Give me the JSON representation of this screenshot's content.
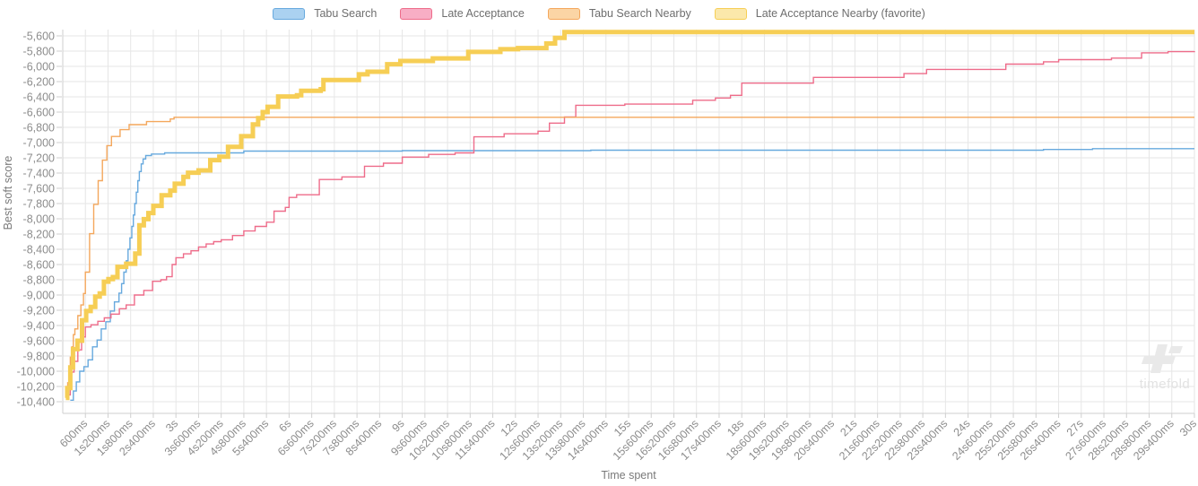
{
  "watermark": {
    "text": "timefold"
  },
  "legend": [
    {
      "label": "Tabu Search",
      "fill": "#abd2f1",
      "border": "#67a9de"
    },
    {
      "label": "Late Acceptance",
      "fill": "#f8aec5",
      "border": "#ee6c8a"
    },
    {
      "label": "Tabu Search Nearby",
      "fill": "#fbd5a5",
      "border": "#f4a75c"
    },
    {
      "label": "Late Acceptance Nearby (favorite)",
      "fill": "#fbe8ab",
      "border": "#f6ce55"
    }
  ],
  "chart_data": {
    "type": "line",
    "subtype": "step-after",
    "title": "",
    "xlabel": "Time spent",
    "ylabel": "Best soft score",
    "x_unit": "seconds",
    "xlim": [
      0,
      30
    ],
    "ylim": [
      -10400,
      -5600
    ],
    "grid": true,
    "legend_position": "top-center",
    "x_tick_start_s": 0.6,
    "x_tick_step_s": 0.6,
    "x_ticks": [
      "600ms",
      "1s200ms",
      "1s800ms",
      "2s400ms",
      "3s",
      "3s600ms",
      "4s200ms",
      "4s800ms",
      "5s400ms",
      "6s",
      "6s600ms",
      "7s200ms",
      "7s800ms",
      "8s400ms",
      "9s",
      "9s600ms",
      "10s200ms",
      "10s800ms",
      "11s400ms",
      "12s",
      "12s600ms",
      "13s200ms",
      "13s800ms",
      "14s400ms",
      "15s",
      "15s600ms",
      "16s200ms",
      "16s800ms",
      "17s400ms",
      "18s",
      "18s600ms",
      "19s200ms",
      "19s800ms",
      "20s400ms",
      "21s",
      "21s600ms",
      "22s200ms",
      "22s800ms",
      "23s400ms",
      "24s",
      "24s600ms",
      "25s200ms",
      "25s800ms",
      "26s400ms",
      "27s",
      "27s600ms",
      "28s200ms",
      "28s800ms",
      "29s400ms",
      "30s"
    ],
    "y_ticks": [
      -5600,
      -5800,
      -6000,
      -6200,
      -6400,
      -6600,
      -6800,
      -7000,
      -7200,
      -7400,
      -7600,
      -7800,
      -8000,
      -8200,
      -8400,
      -8600,
      -8800,
      -9000,
      -9200,
      -9400,
      -9600,
      -9800,
      -10000,
      -10200,
      -10400
    ],
    "series": [
      {
        "name": "Tabu Search",
        "color": "#67a9de",
        "favorite": false,
        "points": [
          [
            0.2,
            -10380
          ],
          [
            0.28,
            -10260
          ],
          [
            0.36,
            -10140
          ],
          [
            0.45,
            -10000
          ],
          [
            0.56,
            -9940
          ],
          [
            0.67,
            -9850
          ],
          [
            0.79,
            -9680
          ],
          [
            0.91,
            -9590
          ],
          [
            1.02,
            -9445
          ],
          [
            1.14,
            -9350
          ],
          [
            1.26,
            -9210
          ],
          [
            1.37,
            -9090
          ],
          [
            1.49,
            -8975
          ],
          [
            1.56,
            -8850
          ],
          [
            1.62,
            -8700
          ],
          [
            1.68,
            -8550
          ],
          [
            1.73,
            -8400
          ],
          [
            1.78,
            -8250
          ],
          [
            1.83,
            -8100
          ],
          [
            1.87,
            -7950
          ],
          [
            1.91,
            -7800
          ],
          [
            1.95,
            -7650
          ],
          [
            1.99,
            -7500
          ],
          [
            2.03,
            -7380
          ],
          [
            2.08,
            -7280
          ],
          [
            2.13,
            -7215
          ],
          [
            2.2,
            -7170
          ],
          [
            2.35,
            -7150
          ],
          [
            2.7,
            -7135
          ],
          [
            4.8,
            -7112
          ],
          [
            9.0,
            -7106
          ],
          [
            14.0,
            -7100
          ],
          [
            26.0,
            -7090
          ],
          [
            27.3,
            -7080
          ],
          [
            30,
            -7080
          ]
        ]
      },
      {
        "name": "Late Acceptance",
        "color": "#ee6c8a",
        "favorite": false,
        "points": [
          [
            0.1,
            -10310
          ],
          [
            0.2,
            -10010
          ],
          [
            0.3,
            -9870
          ],
          [
            0.4,
            -9720
          ],
          [
            0.5,
            -9550
          ],
          [
            0.6,
            -9420
          ],
          [
            0.75,
            -9390
          ],
          [
            0.93,
            -9345
          ],
          [
            1.1,
            -9300
          ],
          [
            1.28,
            -9250
          ],
          [
            1.5,
            -9180
          ],
          [
            1.68,
            -9130
          ],
          [
            1.9,
            -9000
          ],
          [
            2.15,
            -8940
          ],
          [
            2.38,
            -8820
          ],
          [
            2.6,
            -8800
          ],
          [
            2.75,
            -8760
          ],
          [
            2.9,
            -8600
          ],
          [
            3.0,
            -8510
          ],
          [
            3.2,
            -8460
          ],
          [
            3.4,
            -8420
          ],
          [
            3.6,
            -8370
          ],
          [
            3.8,
            -8330
          ],
          [
            4.0,
            -8300
          ],
          [
            4.2,
            -8275
          ],
          [
            4.5,
            -8220
          ],
          [
            4.8,
            -8160
          ],
          [
            5.1,
            -8100
          ],
          [
            5.4,
            -8045
          ],
          [
            5.6,
            -7900
          ],
          [
            5.9,
            -7850
          ],
          [
            6.0,
            -7720
          ],
          [
            6.2,
            -7685
          ],
          [
            6.8,
            -7485
          ],
          [
            7.4,
            -7450
          ],
          [
            8.0,
            -7310
          ],
          [
            8.5,
            -7270
          ],
          [
            9.0,
            -7190
          ],
          [
            9.7,
            -7155
          ],
          [
            10.4,
            -7135
          ],
          [
            10.9,
            -6925
          ],
          [
            11.7,
            -6885
          ],
          [
            12.6,
            -6850
          ],
          [
            12.9,
            -6745
          ],
          [
            13.3,
            -6665
          ],
          [
            13.6,
            -6510
          ],
          [
            14.9,
            -6495
          ],
          [
            16.7,
            -6445
          ],
          [
            17.3,
            -6415
          ],
          [
            17.7,
            -6380
          ],
          [
            18.0,
            -6220
          ],
          [
            19.9,
            -6145
          ],
          [
            22.3,
            -6095
          ],
          [
            22.9,
            -6040
          ],
          [
            25.0,
            -5970
          ],
          [
            26.0,
            -5940
          ],
          [
            26.4,
            -5912
          ],
          [
            27.8,
            -5892
          ],
          [
            28.6,
            -5822
          ],
          [
            29.3,
            -5807
          ],
          [
            30,
            -5800
          ]
        ]
      },
      {
        "name": "Tabu Search Nearby",
        "color": "#f4a75c",
        "favorite": false,
        "points": [
          [
            0.08,
            -10330
          ],
          [
            0.13,
            -10150
          ],
          [
            0.16,
            -9950
          ],
          [
            0.2,
            -9815
          ],
          [
            0.24,
            -9680
          ],
          [
            0.28,
            -9520
          ],
          [
            0.32,
            -9445
          ],
          [
            0.4,
            -9270
          ],
          [
            0.48,
            -9130
          ],
          [
            0.55,
            -8980
          ],
          [
            0.6,
            -8700
          ],
          [
            0.71,
            -8195
          ],
          [
            0.82,
            -7810
          ],
          [
            0.94,
            -7500
          ],
          [
            1.05,
            -7230
          ],
          [
            1.17,
            -7040
          ],
          [
            1.29,
            -6920
          ],
          [
            1.52,
            -6830
          ],
          [
            1.76,
            -6765
          ],
          [
            2.22,
            -6725
          ],
          [
            2.85,
            -6690
          ],
          [
            2.95,
            -6668
          ],
          [
            30,
            -6668
          ]
        ]
      },
      {
        "name": "Late Acceptance Nearby (favorite)",
        "color": "#f6ce55",
        "favorite": true,
        "points": [
          [
            0.08,
            -10350
          ],
          [
            0.12,
            -10220
          ],
          [
            0.2,
            -9950
          ],
          [
            0.27,
            -9710
          ],
          [
            0.39,
            -9600
          ],
          [
            0.51,
            -9330
          ],
          [
            0.62,
            -9210
          ],
          [
            0.74,
            -9155
          ],
          [
            0.86,
            -9020
          ],
          [
            0.98,
            -8980
          ],
          [
            1.09,
            -8825
          ],
          [
            1.21,
            -8790
          ],
          [
            1.33,
            -8765
          ],
          [
            1.45,
            -8630
          ],
          [
            1.68,
            -8590
          ],
          [
            1.92,
            -8455
          ],
          [
            2.03,
            -8085
          ],
          [
            2.15,
            -8005
          ],
          [
            2.27,
            -7925
          ],
          [
            2.4,
            -7830
          ],
          [
            2.62,
            -7690
          ],
          [
            2.85,
            -7630
          ],
          [
            2.97,
            -7540
          ],
          [
            3.2,
            -7450
          ],
          [
            3.32,
            -7395
          ],
          [
            3.6,
            -7365
          ],
          [
            3.91,
            -7230
          ],
          [
            4.15,
            -7185
          ],
          [
            4.38,
            -7055
          ],
          [
            4.73,
            -6917
          ],
          [
            5.04,
            -6762
          ],
          [
            5.18,
            -6680
          ],
          [
            5.3,
            -6600
          ],
          [
            5.43,
            -6530
          ],
          [
            5.71,
            -6395
          ],
          [
            6.21,
            -6380
          ],
          [
            6.32,
            -6320
          ],
          [
            6.84,
            -6300
          ],
          [
            6.91,
            -6180
          ],
          [
            7.85,
            -6105
          ],
          [
            8.08,
            -6070
          ],
          [
            8.6,
            -5972
          ],
          [
            8.95,
            -5930
          ],
          [
            9.81,
            -5895
          ],
          [
            10.75,
            -5810
          ],
          [
            11.6,
            -5775
          ],
          [
            12.07,
            -5760
          ],
          [
            12.82,
            -5700
          ],
          [
            13.05,
            -5626
          ],
          [
            13.3,
            -5550
          ],
          [
            30,
            -5550
          ]
        ]
      }
    ]
  }
}
